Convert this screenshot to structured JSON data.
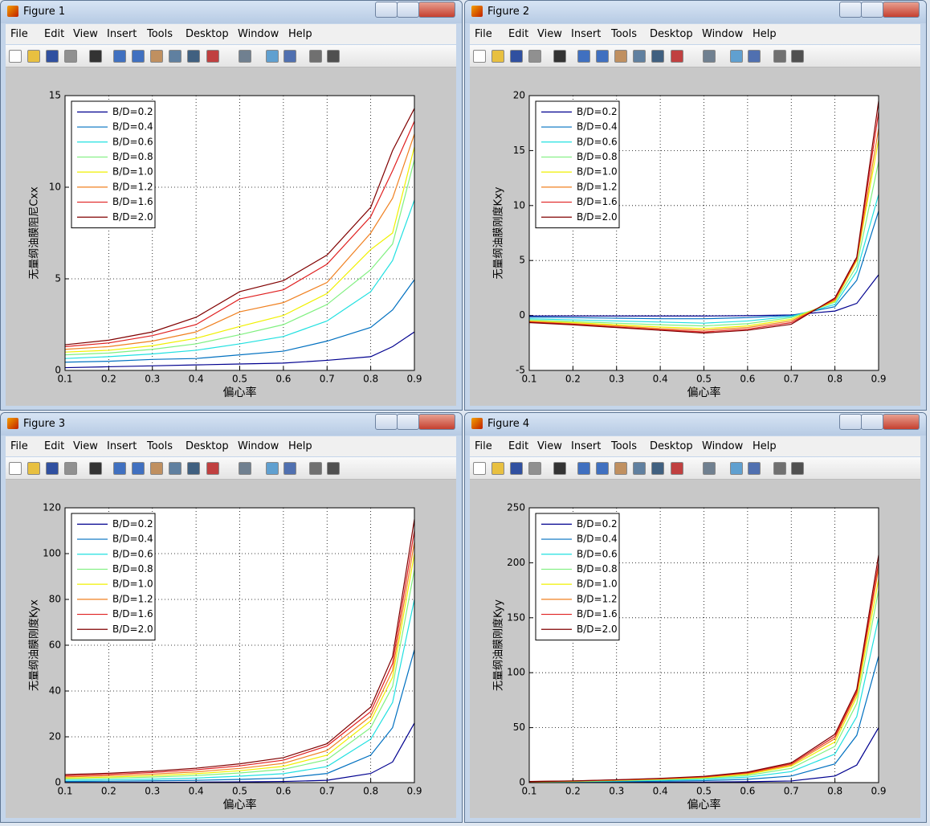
{
  "windows": [
    {
      "title": "Figure 1",
      "menu": [
        "File",
        "Edit",
        "View",
        "Insert",
        "Tools",
        "Desktop",
        "Window",
        "Help"
      ]
    },
    {
      "title": "Figure 2",
      "menu": [
        "File",
        "Edit",
        "View",
        "Insert",
        "Tools",
        "Desktop",
        "Window",
        "Help"
      ]
    },
    {
      "title": "Figure 3",
      "menu": [
        "File",
        "Edit",
        "View",
        "Insert",
        "Tools",
        "Desktop",
        "Window",
        "Help"
      ]
    },
    {
      "title": "Figure 4",
      "menu": [
        "File",
        "Edit",
        "View",
        "Insert",
        "Tools",
        "Desktop",
        "Window",
        "Help"
      ]
    }
  ],
  "chart_data": [
    {
      "type": "line",
      "xlabel": "偏心率",
      "ylabel": "无量纲油膜阻尼Cxx",
      "grid": true,
      "legend": "upper left",
      "x": [
        0.1,
        0.2,
        0.3,
        0.4,
        0.5,
        0.6,
        0.7,
        0.8,
        0.85,
        0.9
      ],
      "xlim": [
        0.1,
        0.9
      ],
      "xticks": [
        0.1,
        0.2,
        0.3,
        0.4,
        0.5,
        0.6,
        0.7,
        0.8,
        0.9
      ],
      "ylim": [
        0,
        15
      ],
      "yticks": [
        0,
        5,
        10,
        15
      ],
      "series": [
        {
          "name": "B/D=0.2",
          "color": "#00008f",
          "values": [
            0.15,
            0.2,
            0.25,
            0.3,
            0.35,
            0.4,
            0.55,
            0.75,
            1.3,
            2.1
          ]
        },
        {
          "name": "B/D=0.4",
          "color": "#0070c0",
          "values": [
            0.45,
            0.5,
            0.6,
            0.65,
            0.85,
            1.05,
            1.6,
            2.35,
            3.3,
            4.95
          ]
        },
        {
          "name": "B/D=0.6",
          "color": "#20e0e0",
          "values": [
            0.65,
            0.75,
            0.9,
            1.1,
            1.45,
            1.85,
            2.7,
            4.3,
            6.0,
            9.3
          ]
        },
        {
          "name": "B/D=0.8",
          "color": "#80f080",
          "values": [
            0.85,
            0.95,
            1.15,
            1.45,
            1.95,
            2.5,
            3.6,
            5.5,
            6.9,
            11.5
          ]
        },
        {
          "name": "B/D=1.0",
          "color": "#f0f000",
          "values": [
            1.0,
            1.1,
            1.35,
            1.75,
            2.4,
            3.0,
            4.2,
            6.6,
            7.5,
            12.2
          ]
        },
        {
          "name": "B/D=1.2",
          "color": "#f08020",
          "values": [
            1.15,
            1.3,
            1.6,
            2.1,
            3.2,
            3.7,
            4.8,
            7.5,
            9.4,
            12.9
          ]
        },
        {
          "name": "B/D=1.6",
          "color": "#e02020",
          "values": [
            1.3,
            1.5,
            1.9,
            2.5,
            3.9,
            4.4,
            5.8,
            8.4,
            10.9,
            13.6
          ]
        },
        {
          "name": "B/D=2.0",
          "color": "#800000",
          "values": [
            1.4,
            1.65,
            2.1,
            2.9,
            4.3,
            4.9,
            6.3,
            8.9,
            12.0,
            14.3
          ]
        }
      ]
    },
    {
      "type": "line",
      "xlabel": "偏心率",
      "ylabel": "无量纲油膜刚度Kxy",
      "grid": true,
      "legend": "upper left",
      "x": [
        0.1,
        0.2,
        0.3,
        0.4,
        0.5,
        0.6,
        0.7,
        0.8,
        0.85,
        0.9
      ],
      "xlim": [
        0.1,
        0.9
      ],
      "xticks": [
        0.1,
        0.2,
        0.3,
        0.4,
        0.5,
        0.6,
        0.7,
        0.8,
        0.9
      ],
      "ylim": [
        -5,
        20
      ],
      "yticks": [
        -5,
        0,
        5,
        10,
        15,
        20
      ],
      "series": [
        {
          "name": "B/D=0.2",
          "color": "#00008f",
          "values": [
            -0.05,
            -0.05,
            -0.05,
            -0.05,
            -0.05,
            -0.02,
            0.05,
            0.4,
            1.1,
            3.7
          ]
        },
        {
          "name": "B/D=0.4",
          "color": "#0070c0",
          "values": [
            -0.15,
            -0.2,
            -0.25,
            -0.3,
            -0.3,
            -0.2,
            0.0,
            0.8,
            3.2,
            9.5
          ]
        },
        {
          "name": "B/D=0.6",
          "color": "#20e0e0",
          "values": [
            -0.3,
            -0.4,
            -0.5,
            -0.6,
            -0.7,
            -0.5,
            -0.1,
            1.0,
            4.0,
            11
          ]
        },
        {
          "name": "B/D=0.8",
          "color": "#80f080",
          "values": [
            -0.4,
            -0.55,
            -0.7,
            -0.85,
            -0.95,
            -0.75,
            -0.2,
            1.2,
            4.5,
            14
          ]
        },
        {
          "name": "B/D=1.0",
          "color": "#f0f000",
          "values": [
            -0.5,
            -0.65,
            -0.85,
            -1.05,
            -1.2,
            -0.95,
            -0.35,
            1.3,
            5.0,
            16
          ]
        },
        {
          "name": "B/D=1.2",
          "color": "#f08020",
          "values": [
            -0.55,
            -0.75,
            -0.95,
            -1.2,
            -1.35,
            -1.1,
            -0.5,
            1.4,
            5.1,
            17
          ]
        },
        {
          "name": "B/D=1.6",
          "color": "#e02020",
          "values": [
            -0.6,
            -0.8,
            -1.05,
            -1.3,
            -1.5,
            -1.25,
            -0.65,
            1.5,
            5.2,
            18.5
          ]
        },
        {
          "name": "B/D=2.0",
          "color": "#800000",
          "values": [
            -0.65,
            -0.85,
            -1.1,
            -1.35,
            -1.6,
            -1.35,
            -0.8,
            1.6,
            5.3,
            19.5
          ]
        }
      ]
    },
    {
      "type": "line",
      "xlabel": "偏心率",
      "ylabel": "无量纲油膜刚度Kyx",
      "grid": true,
      "legend": "upper left",
      "x": [
        0.1,
        0.2,
        0.3,
        0.4,
        0.5,
        0.6,
        0.7,
        0.8,
        0.85,
        0.9
      ],
      "xlim": [
        0.1,
        0.9
      ],
      "xticks": [
        0.1,
        0.2,
        0.3,
        0.4,
        0.5,
        0.6,
        0.7,
        0.8,
        0.9
      ],
      "ylim": [
        0,
        120
      ],
      "yticks": [
        0,
        20,
        40,
        60,
        80,
        100,
        120
      ],
      "series": [
        {
          "name": "B/D=0.2",
          "color": "#00008f",
          "values": [
            0.1,
            0.1,
            0.15,
            0.2,
            0.3,
            0.5,
            1.0,
            4,
            9,
            26
          ]
        },
        {
          "name": "B/D=0.4",
          "color": "#0070c0",
          "values": [
            0.5,
            0.6,
            0.8,
            1.0,
            1.4,
            2.0,
            4.0,
            12,
            24,
            58
          ]
        },
        {
          "name": "B/D=0.6",
          "color": "#20e0e0",
          "values": [
            1.0,
            1.2,
            1.5,
            2.0,
            2.8,
            3.9,
            7,
            19,
            35,
            80
          ]
        },
        {
          "name": "B/D=0.8",
          "color": "#80f080",
          "values": [
            1.6,
            1.9,
            2.4,
            3.1,
            4.2,
            5.8,
            10,
            24,
            42,
            93
          ]
        },
        {
          "name": "B/D=1.0",
          "color": "#f0f000",
          "values": [
            2.0,
            2.4,
            3.0,
            3.9,
            5.2,
            7.1,
            12,
            27,
            46,
            100
          ]
        },
        {
          "name": "B/D=1.2",
          "color": "#f08020",
          "values": [
            2.5,
            3.0,
            3.7,
            4.7,
            6.2,
            8.4,
            14,
            29,
            49,
            105
          ]
        },
        {
          "name": "B/D=1.6",
          "color": "#e02020",
          "values": [
            3.0,
            3.6,
            4.4,
            5.6,
            7.3,
            9.8,
            16,
            31,
            52,
            110
          ]
        },
        {
          "name": "B/D=2.0",
          "color": "#800000",
          "values": [
            3.5,
            4.1,
            5.0,
            6.3,
            8.2,
            10.9,
            17,
            33,
            55,
            115
          ]
        }
      ]
    },
    {
      "type": "line",
      "xlabel": "偏心率",
      "ylabel": "无量纲油膜刚度Kyy",
      "grid": true,
      "legend": "upper left",
      "x": [
        0.1,
        0.2,
        0.3,
        0.4,
        0.5,
        0.6,
        0.7,
        0.8,
        0.85,
        0.9
      ],
      "xlim": [
        0.1,
        0.9
      ],
      "xticks": [
        0.1,
        0.2,
        0.3,
        0.4,
        0.5,
        0.6,
        0.7,
        0.8,
        0.9
      ],
      "ylim": [
        0,
        250
      ],
      "yticks": [
        0,
        50,
        100,
        150,
        200,
        250
      ],
      "series": [
        {
          "name": "B/D=0.2",
          "color": "#00008f",
          "values": [
            0.1,
            0.2,
            0.3,
            0.4,
            0.5,
            0.8,
            1.5,
            6,
            16,
            50
          ]
        },
        {
          "name": "B/D=0.4",
          "color": "#0070c0",
          "values": [
            0.4,
            0.6,
            0.9,
            1.3,
            1.8,
            3,
            6,
            17,
            43,
            115
          ]
        },
        {
          "name": "B/D=0.6",
          "color": "#20e0e0",
          "values": [
            0.6,
            0.9,
            1.4,
            2.1,
            3.0,
            5,
            10,
            26,
            60,
            150
          ]
        },
        {
          "name": "B/D=0.8",
          "color": "#80f080",
          "values": [
            0.7,
            1.1,
            1.8,
            2.7,
            3.9,
            6.5,
            13,
            33,
            72,
            175
          ]
        },
        {
          "name": "B/D=1.0",
          "color": "#f0f000",
          "values": [
            0.8,
            1.3,
            2.1,
            3.1,
            4.5,
            7.6,
            15,
            37,
            78,
            185
          ]
        },
        {
          "name": "B/D=1.2",
          "color": "#f08020",
          "values": [
            0.9,
            1.4,
            2.3,
            3.4,
            5.0,
            8.4,
            16,
            40,
            81,
            195
          ]
        },
        {
          "name": "B/D=1.6",
          "color": "#e02020",
          "values": [
            1.0,
            1.5,
            2.5,
            3.7,
            5.4,
            9.0,
            17,
            42,
            83,
            200
          ]
        },
        {
          "name": "B/D=2.0",
          "color": "#800000",
          "values": [
            1.0,
            1.6,
            2.6,
            3.9,
            5.7,
            9.6,
            18,
            44,
            85,
            207
          ]
        }
      ]
    }
  ]
}
